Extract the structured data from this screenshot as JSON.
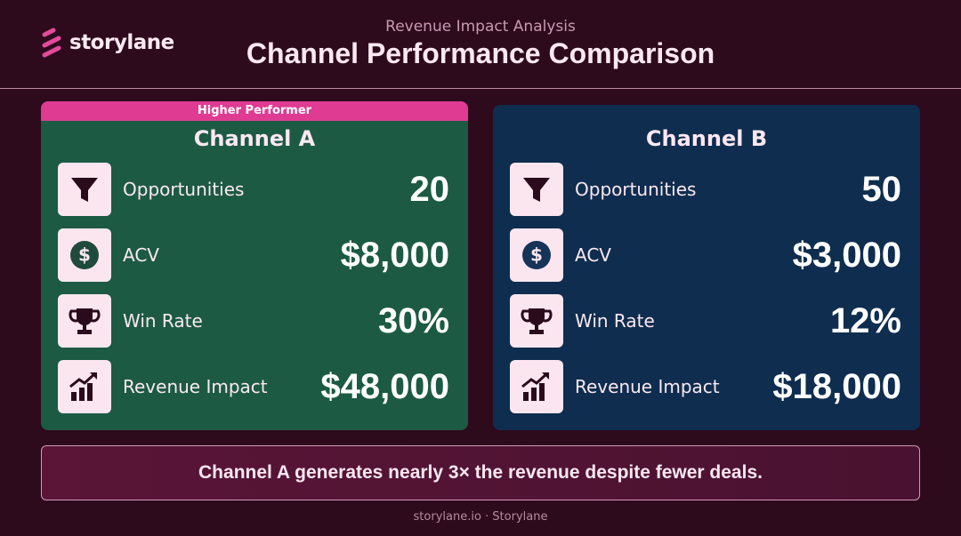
{
  "brand": "storylane",
  "header": {
    "subtitle": "Revenue Impact Analysis",
    "title": "Channel Performance Comparison"
  },
  "cards": [
    {
      "badge": "Higher Performer",
      "title": "Channel A",
      "rows": [
        {
          "label": "Opportunities",
          "value": "20"
        },
        {
          "label": "ACV",
          "value": "$8,000"
        },
        {
          "label": "Win Rate",
          "value": "30%"
        },
        {
          "label": "Revenue Impact",
          "value": "$48,000"
        }
      ]
    },
    {
      "title": "Channel B",
      "rows": [
        {
          "label": "Opportunities",
          "value": "50"
        },
        {
          "label": "ACV",
          "value": "$3,000"
        },
        {
          "label": "Win Rate",
          "value": "12%"
        },
        {
          "label": "Revenue Impact",
          "value": "$18,000"
        }
      ]
    }
  ],
  "callout": "Channel A generates nearly 3× the revenue despite fewer deals.",
  "footer": "storylane.io · Storylane"
}
